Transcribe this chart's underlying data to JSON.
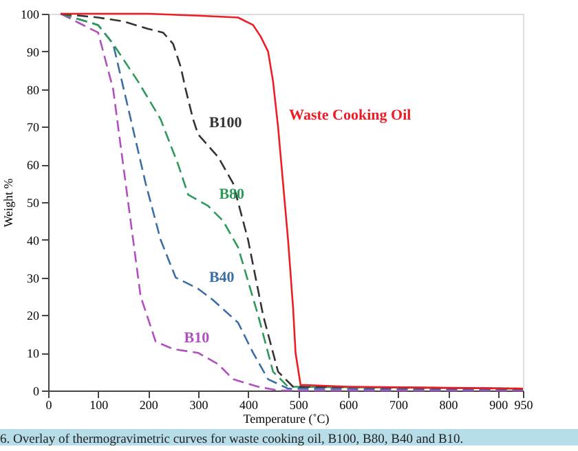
{
  "chart_data": {
    "type": "line",
    "xlabel": "Temperature (˚C)",
    "ylabel": "Weight %",
    "xlim": [
      0,
      950
    ],
    "xticks": [
      0,
      100,
      200,
      300,
      400,
      500,
      600,
      700,
      800,
      900,
      950
    ],
    "ylim": [
      0,
      100
    ],
    "yticks": [
      0,
      10,
      20,
      30,
      40,
      50,
      60,
      70,
      80,
      90,
      100
    ],
    "grid": false,
    "marker": "none",
    "series": [
      {
        "name": "Waste Cooking Oil",
        "color": "#ee1c25",
        "line_style": "solid",
        "x": [
          25,
          200,
          300,
          380,
          410,
          425,
          440,
          450,
          460,
          470,
          480,
          490,
          495,
          505,
          600,
          800,
          950
        ],
        "values": [
          100,
          100,
          99.5,
          99,
          97,
          94,
          90,
          82,
          70,
          55,
          40,
          22,
          10,
          1.5,
          1,
          0.7,
          0.5
        ]
      },
      {
        "name": "B100",
        "color": "#333333",
        "line_style": "dashed",
        "x": [
          25,
          100,
          150,
          200,
          230,
          250,
          265,
          275,
          290,
          300,
          320,
          340,
          370,
          400,
          430,
          460,
          490,
          950
        ],
        "values": [
          100,
          99,
          98,
          96,
          95,
          92,
          86,
          80,
          72,
          68,
          65,
          62,
          55,
          40,
          20,
          5,
          1,
          0.5
        ]
      },
      {
        "name": "B80",
        "color": "#2e9a5a",
        "line_style": "dashed",
        "x": [
          25,
          100,
          130,
          180,
          225,
          260,
          280,
          320,
          350,
          380,
          420,
          450,
          480,
          950
        ],
        "values": [
          100,
          97,
          92,
          82,
          72,
          60,
          52,
          49,
          45,
          38,
          20,
          5,
          1,
          0.5
        ]
      },
      {
        "name": "B40",
        "color": "#3a6ea5",
        "line_style": "dashed",
        "x": [
          25,
          100,
          130,
          160,
          195,
          225,
          255,
          300,
          330,
          380,
          410,
          440,
          480,
          950
        ],
        "values": [
          100,
          97,
          92,
          75,
          55,
          40,
          30,
          27,
          24,
          18,
          10,
          3,
          0.5,
          0.3
        ]
      },
      {
        "name": "B10",
        "color": "#b04fc0",
        "line_style": "dashed",
        "x": [
          25,
          100,
          130,
          160,
          185,
          215,
          250,
          300,
          340,
          370,
          420,
          460,
          950
        ],
        "values": [
          100,
          95,
          80,
          50,
          25,
          13,
          11,
          10,
          7,
          3,
          1,
          0,
          0
        ]
      }
    ],
    "annotations": [
      "6. Overlay of thermogravimetric curves for waste cooking oil, B100, B80, B40 and B10."
    ]
  }
}
